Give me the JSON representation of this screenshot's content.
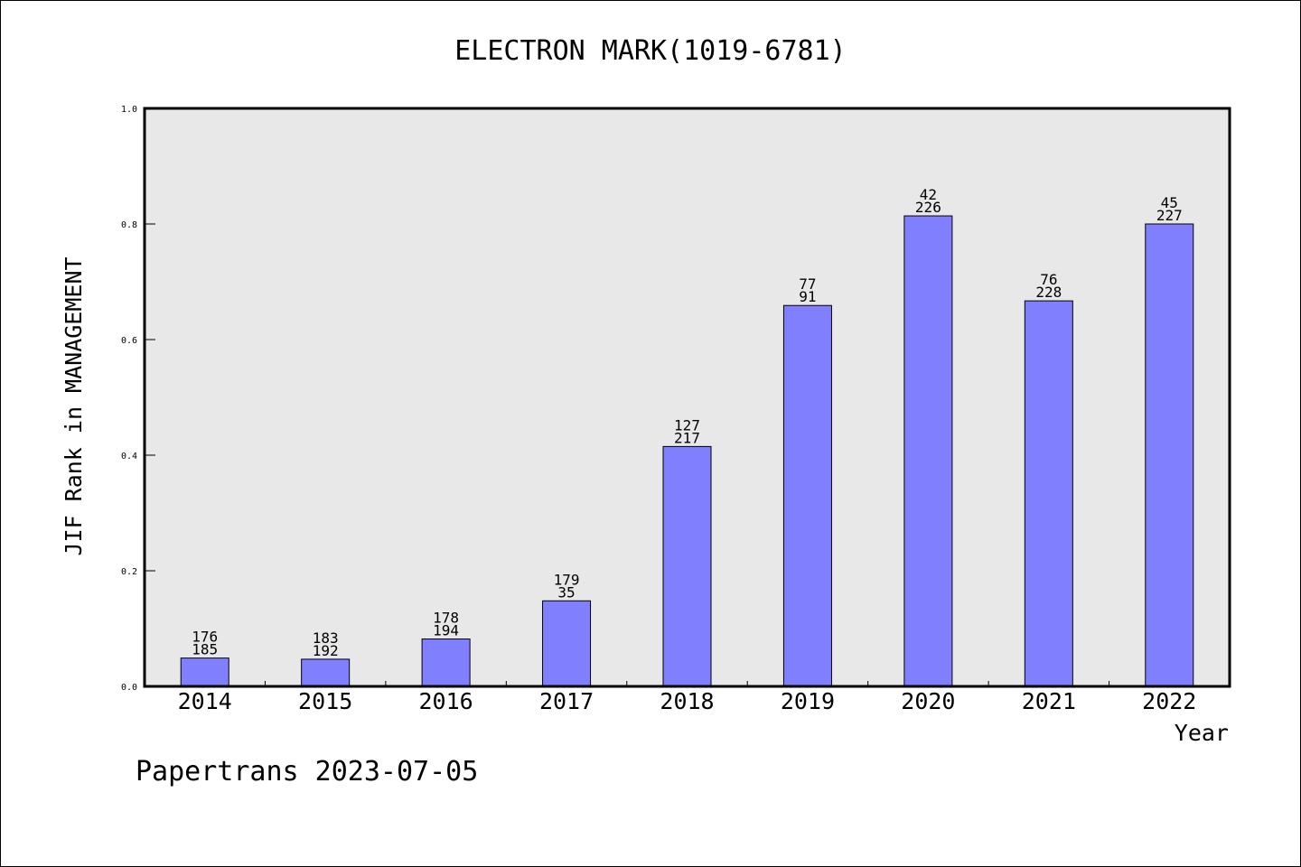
{
  "chart_data": {
    "type": "bar",
    "title": "ELECTRON MARK(1019-6781)",
    "xlabel": "Year",
    "ylabel": "JIF Rank in MANAGEMENT",
    "ylim": [
      0,
      1.0
    ],
    "yticks": [
      "0.0",
      "0.2",
      "0.4",
      "0.6",
      "0.8",
      "1.0"
    ],
    "categories": [
      "2014",
      "2015",
      "2016",
      "2017",
      "2018",
      "2019",
      "2020",
      "2021",
      "2022"
    ],
    "values": [
      0.049,
      0.047,
      0.082,
      0.148,
      0.415,
      0.659,
      0.814,
      0.667,
      0.8
    ],
    "labels_top": [
      "176",
      "183",
      "178",
      "179",
      "127",
      "77",
      "42",
      "76",
      "45"
    ],
    "labels_bottom": [
      "185",
      "192",
      "194",
      "35",
      "217",
      "91",
      "226",
      "228",
      "227"
    ],
    "bar_color": "#8080ff",
    "plot_bg": "#e8e8e8",
    "grid": false
  },
  "footer": "Papertrans 2023-07-05"
}
